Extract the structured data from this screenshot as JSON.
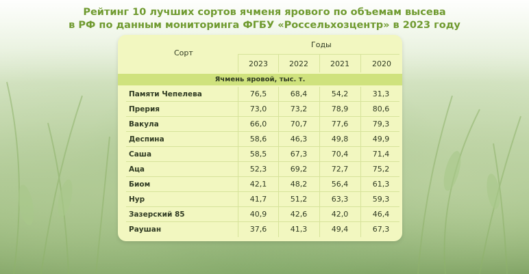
{
  "title": {
    "line1": "Рейтинг 10 лучших сортов ячменя ярового по объемам высева",
    "line2": "в РФ по данным мониторинга ФГБУ «Россельхозцентр» в 2023 году"
  },
  "table": {
    "col_sort": "Сорт",
    "col_years": "Годы",
    "years": [
      "2023",
      "2022",
      "2021",
      "2020"
    ],
    "section": "Ячмень яровой, тыс. т.",
    "rows": [
      {
        "name": "Памяти Чепелева",
        "v": [
          "76,5",
          "68,4",
          "54,2",
          "31,3"
        ]
      },
      {
        "name": "Прерия",
        "v": [
          "73,0",
          "73,2",
          "78,9",
          "80,6"
        ]
      },
      {
        "name": "Вакула",
        "v": [
          "66,0",
          "70,7",
          "77,6",
          "79,3"
        ]
      },
      {
        "name": "Деспина",
        "v": [
          "58,6",
          "46,3",
          "49,8",
          "49,9"
        ]
      },
      {
        "name": "Саша",
        "v": [
          "58,5",
          "67,3",
          "70,4",
          "71,4"
        ]
      },
      {
        "name": "Аца",
        "v": [
          "52,3",
          "69,2",
          "72,7",
          "75,2"
        ]
      },
      {
        "name": "Биом",
        "v": [
          "42,1",
          "48,2",
          "56,4",
          "61,3"
        ]
      },
      {
        "name": "Нур",
        "v": [
          "41,7",
          "51,2",
          "63,3",
          "59,3"
        ]
      },
      {
        "name": "Зазерский 85",
        "v": [
          "40,9",
          "42,6",
          "42,0",
          "46,4"
        ]
      },
      {
        "name": "Раушан",
        "v": [
          "37,6",
          "41,3",
          "49,4",
          "67,3"
        ]
      }
    ]
  }
}
